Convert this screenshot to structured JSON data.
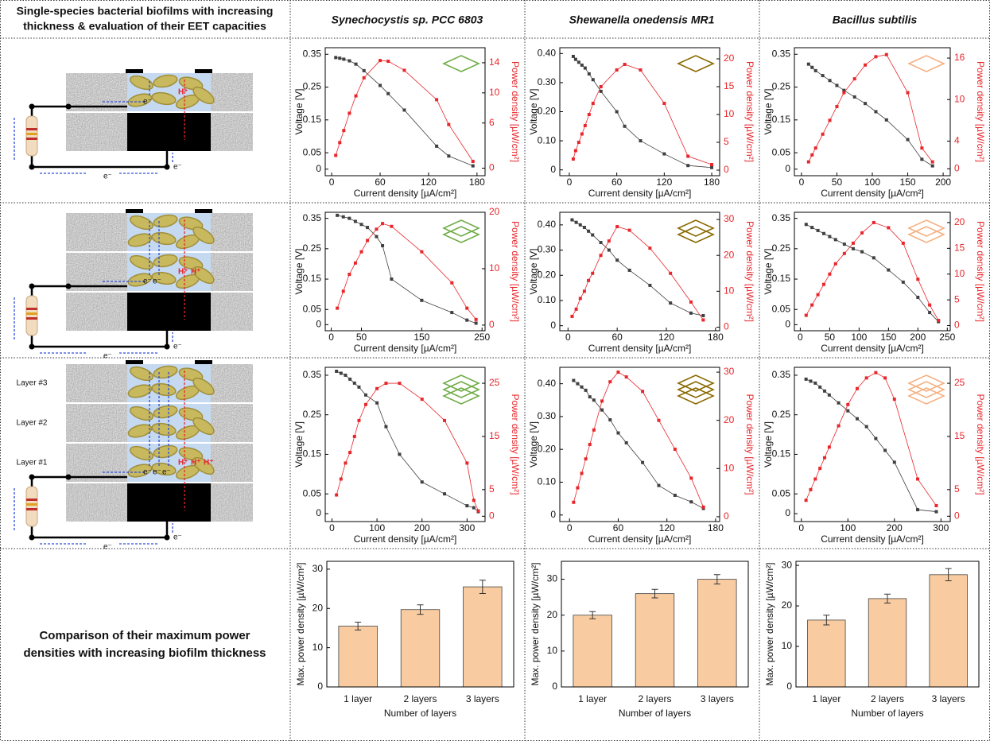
{
  "table": {
    "header_left": [
      "Single-species bacterial biofilms with increasing",
      "thickness & evaluation of their EET capacities"
    ],
    "columns": [
      "Synechocystis sp. PCC 6803",
      "Shewanella onedensis MR1",
      "Bacillus subtilis"
    ],
    "bottom_left": [
      "Comparison of their maximum power",
      "densities with increasing biofilm thickness"
    ]
  },
  "diagrams": {
    "electron": "e⁻",
    "proton": "H⁺",
    "layers": [
      "Layer #1",
      "Layer #2",
      "Layer #3"
    ]
  },
  "chart_data": [
    {
      "type": "line",
      "xlabel": "Current density [µA/cm²]",
      "ylabel": "Voltage [V]",
      "y2label": "Power density [µW/cm²]",
      "icon_color": "#70ad47",
      "xlim": [
        -8,
        190
      ],
      "xticks": [
        0,
        60,
        120,
        180
      ],
      "ylim": [
        -0.02,
        0.37
      ],
      "yticks": [
        0,
        0.05,
        0.15,
        0.25,
        0.35
      ],
      "y2lim": [
        -1,
        16
      ],
      "y2ticks": [
        0,
        6,
        10,
        14
      ],
      "x": [
        5,
        10,
        15,
        22,
        30,
        40,
        60,
        70,
        90,
        130,
        145,
        175
      ],
      "series": [
        {
          "color": "#404040",
          "values": [
            0.34,
            0.338,
            0.335,
            0.33,
            0.32,
            0.3,
            0.255,
            0.23,
            0.18,
            0.07,
            0.04,
            0.01
          ]
        },
        {
          "color": "#e8262b",
          "axis": "y2",
          "values": [
            1.7,
            3.4,
            5,
            7.3,
            9.6,
            12,
            14.3,
            14.2,
            13,
            9.1,
            5.8,
            0.9
          ]
        }
      ]
    },
    {
      "type": "line",
      "xlabel": "Current density [µA/cm²]",
      "ylabel": "Voltage [V]",
      "y2label": "Power density [µW/cm²]",
      "icon_color": "#8a6a00",
      "xlim": [
        -12,
        190
      ],
      "xticks": [
        0,
        60,
        120,
        180
      ],
      "ylim": [
        -0.02,
        0.42
      ],
      "yticks": [
        0,
        {
          "value": 0.1,
          "label": "0.10"
        },
        {
          "value": 0.2,
          "label": "0.20"
        },
        {
          "value": 0.3,
          "label": "0.30"
        },
        {
          "value": 0.4,
          "label": "0.40"
        }
      ],
      "y2lim": [
        -1,
        22
      ],
      "y2ticks": [
        0,
        5,
        10,
        15,
        20
      ],
      "x": [
        5,
        8,
        12,
        16,
        20,
        25,
        30,
        40,
        60,
        70,
        90,
        120,
        150,
        180
      ],
      "series": [
        {
          "color": "#404040",
          "values": [
            0.39,
            0.38,
            0.37,
            0.36,
            0.35,
            0.33,
            0.31,
            0.27,
            0.2,
            0.15,
            0.1,
            0.055,
            0.015,
            0.008
          ]
        },
        {
          "color": "#e8262b",
          "axis": "y2",
          "values": [
            2,
            3.5,
            5,
            6.5,
            8,
            10,
            12,
            15,
            18,
            19,
            18,
            12,
            2.5,
            1
          ]
        }
      ]
    },
    {
      "type": "line",
      "xlabel": "Current density [µA/cm²]",
      "ylabel": "Voltage [V]",
      "y2label": "Power density [µW/cm²]",
      "icon_color": "#f4b183",
      "xlim": [
        -10,
        210
      ],
      "xticks": [
        0,
        50,
        100,
        150,
        200
      ],
      "ylim": [
        -0.02,
        0.37
      ],
      "yticks": [
        0,
        0.05,
        0.15,
        0.25,
        0.35
      ],
      "y2lim": [
        -1,
        17.5
      ],
      "y2ticks": [
        0,
        4,
        10,
        16
      ],
      "x": [
        10,
        15,
        20,
        30,
        40,
        50,
        60,
        75,
        90,
        105,
        120,
        150,
        170,
        185
      ],
      "series": [
        {
          "color": "#404040",
          "values": [
            0.32,
            0.31,
            0.3,
            0.285,
            0.27,
            0.255,
            0.24,
            0.22,
            0.2,
            0.175,
            0.15,
            0.09,
            0.03,
            0.01
          ]
        },
        {
          "color": "#e8262b",
          "axis": "y2",
          "values": [
            1,
            2,
            3,
            5,
            7,
            9,
            11,
            13,
            15,
            16.2,
            16.5,
            11,
            3,
            1
          ]
        }
      ]
    },
    {
      "type": "line",
      "xlabel": "Current density [µA/cm²]",
      "ylabel": "Voltage [V]",
      "y2label": "Power density [µW/cm²]",
      "icon_color": "#70ad47",
      "xlim": [
        -10,
        255
      ],
      "xticks": [
        0,
        50,
        150,
        250
      ],
      "ylim": [
        -0.02,
        0.37
      ],
      "yticks": [
        0,
        0.05,
        0.15,
        0.25,
        0.35
      ],
      "y2lim": [
        -1,
        20
      ],
      "y2ticks": [
        0,
        10,
        20
      ],
      "x": [
        10,
        20,
        30,
        40,
        50,
        60,
        75,
        85,
        100,
        150,
        200,
        225,
        240
      ],
      "series": [
        {
          "color": "#404040",
          "values": [
            0.36,
            0.355,
            0.35,
            0.34,
            0.33,
            0.32,
            0.29,
            0.26,
            0.15,
            0.08,
            0.04,
            0.015,
            0.005
          ]
        },
        {
          "color": "#e8262b",
          "axis": "y2",
          "values": [
            3,
            6,
            9,
            11,
            13,
            15,
            17,
            18,
            17.5,
            13,
            7.5,
            3,
            1
          ]
        }
      ]
    },
    {
      "type": "line",
      "xlabel": "Current density [µA/cm²]",
      "ylabel": "Voltage [V]",
      "y2label": "Power density [µW/cm²]",
      "icon_color": "#8a6a00",
      "xlim": [
        -10,
        185
      ],
      "xticks": [
        0,
        60,
        120,
        180
      ],
      "ylim": [
        -0.02,
        0.45
      ],
      "yticks": [
        0,
        {
          "value": 0.1,
          "label": "0.10"
        },
        {
          "value": 0.2,
          "label": "0.20"
        },
        {
          "value": 0.3,
          "label": "0.30"
        },
        {
          "value": 0.4,
          "label": "0.40"
        }
      ],
      "y2lim": [
        -1,
        32
      ],
      "y2ticks": [
        0,
        10,
        20,
        30
      ],
      "x": [
        5,
        10,
        15,
        20,
        25,
        30,
        40,
        50,
        60,
        75,
        100,
        125,
        150,
        165
      ],
      "series": [
        {
          "color": "#404040",
          "values": [
            0.42,
            0.41,
            0.4,
            0.39,
            0.375,
            0.36,
            0.33,
            0.3,
            0.26,
            0.22,
            0.16,
            0.09,
            0.05,
            0.04
          ]
        },
        {
          "color": "#e8262b",
          "axis": "y2",
          "values": [
            3,
            5,
            8,
            10,
            13,
            15,
            20,
            24,
            28,
            27,
            22,
            15,
            7,
            2
          ]
        }
      ]
    },
    {
      "type": "line",
      "xlabel": "Current density [µA/cm²]",
      "ylabel": "Voltage [V]",
      "y2label": "Power density [µW/cm²]",
      "icon_color": "#f4b183",
      "xlim": [
        -10,
        255
      ],
      "xticks": [
        0,
        50,
        100,
        150,
        200,
        250
      ],
      "ylim": [
        -0.02,
        0.37
      ],
      "yticks": [
        0,
        0.05,
        0.15,
        0.25,
        0.35
      ],
      "y2lim": [
        -1,
        22
      ],
      "y2ticks": [
        0,
        5,
        10,
        15,
        20
      ],
      "x": [
        10,
        20,
        30,
        40,
        50,
        60,
        75,
        90,
        105,
        125,
        150,
        175,
        200,
        220,
        235
      ],
      "series": [
        {
          "color": "#404040",
          "values": [
            0.33,
            0.32,
            0.31,
            0.3,
            0.29,
            0.28,
            0.265,
            0.25,
            0.24,
            0.22,
            0.18,
            0.14,
            0.09,
            0.04,
            0.01
          ]
        },
        {
          "color": "#e8262b",
          "axis": "y2",
          "values": [
            2,
            4,
            6,
            8,
            10,
            12,
            14,
            16,
            18,
            20,
            19,
            16,
            9,
            4,
            1
          ]
        }
      ]
    },
    {
      "type": "line",
      "xlabel": "Current density [µA/cm²]",
      "ylabel": "Voltage [V]",
      "y2label": "Power density [µW/cm²]",
      "icon_color": "#70ad47",
      "xlim": [
        -15,
        340
      ],
      "xticks": [
        0,
        100,
        200,
        300
      ],
      "ylim": [
        -0.02,
        0.37
      ],
      "yticks": [
        0,
        0.05,
        0.15,
        0.25,
        0.35
      ],
      "y2lim": [
        -1,
        28
      ],
      "y2ticks": [
        0,
        5,
        15,
        25
      ],
      "x": [
        10,
        20,
        30,
        40,
        50,
        60,
        75,
        100,
        120,
        150,
        200,
        250,
        300,
        315,
        325
      ],
      "series": [
        {
          "color": "#404040",
          "values": [
            0.36,
            0.355,
            0.35,
            0.34,
            0.33,
            0.32,
            0.3,
            0.28,
            0.22,
            0.15,
            0.08,
            0.05,
            0.02,
            0.015,
            0.005
          ]
        },
        {
          "color": "#e8262b",
          "axis": "y2",
          "values": [
            4,
            7,
            10,
            12,
            15,
            18,
            21,
            24,
            25,
            25,
            22,
            18,
            10,
            3,
            1
          ]
        }
      ]
    },
    {
      "type": "line",
      "xlabel": "Current density [µA/cm²]",
      "ylabel": "Voltage [V]",
      "y2label": "Power density [µW/cm²]",
      "icon_color": "#8a6a00",
      "xlim": [
        -12,
        185
      ],
      "xticks": [
        0,
        60,
        120,
        180
      ],
      "ylim": [
        -0.02,
        0.45
      ],
      "yticks": [
        0,
        {
          "value": 0.1,
          "label": "0.10"
        },
        {
          "value": 0.2,
          "label": "0.20"
        },
        {
          "value": 0.3,
          "label": "0.30"
        },
        {
          "value": 0.4,
          "label": "0.40"
        }
      ],
      "y2lim": [
        -1,
        31
      ],
      "y2ticks": [
        0,
        10,
        20,
        30
      ],
      "x": [
        5,
        10,
        15,
        20,
        25,
        30,
        40,
        50,
        60,
        70,
        90,
        110,
        130,
        150,
        165
      ],
      "series": [
        {
          "color": "#404040",
          "values": [
            0.41,
            0.4,
            0.39,
            0.38,
            0.36,
            0.35,
            0.32,
            0.29,
            0.25,
            0.22,
            0.16,
            0.09,
            0.06,
            0.04,
            0.02
          ]
        },
        {
          "color": "#e8262b",
          "axis": "y2",
          "values": [
            3,
            6,
            9,
            12,
            15,
            18,
            24,
            28,
            30,
            29,
            26,
            20,
            14,
            8,
            2
          ]
        }
      ]
    },
    {
      "type": "line",
      "xlabel": "Current density [µA/cm²]",
      "ylabel": "Voltage [V]",
      "y2label": "Power density [µW/cm²]",
      "icon_color": "#f4b183",
      "xlim": [
        -15,
        320
      ],
      "xticks": [
        0,
        100,
        200,
        300
      ],
      "ylim": [
        -0.02,
        0.37
      ],
      "yticks": [
        0,
        0.05,
        0.15,
        0.25,
        0.35
      ],
      "y2lim": [
        -1,
        28
      ],
      "y2ticks": [
        0,
        5,
        15,
        25
      ],
      "x": [
        10,
        20,
        30,
        40,
        50,
        60,
        80,
        100,
        120,
        140,
        160,
        180,
        200,
        250,
        290
      ],
      "series": [
        {
          "color": "#404040",
          "values": [
            0.34,
            0.335,
            0.33,
            0.32,
            0.31,
            0.3,
            0.28,
            0.26,
            0.24,
            0.22,
            0.19,
            0.16,
            0.13,
            0.01,
            0.005
          ]
        },
        {
          "color": "#e8262b",
          "axis": "y2",
          "values": [
            3,
            5,
            7,
            9,
            11,
            13,
            17,
            21,
            24,
            26,
            27,
            26,
            22,
            7,
            2
          ]
        }
      ]
    },
    {
      "type": "bar",
      "xlabel": "Number of layers",
      "ylabel": "Max. power density [µW/cm²]",
      "color": "#f8cba0",
      "categories": [
        "1 layer",
        "2 layers",
        "3 layers"
      ],
      "values": [
        15.5,
        19.7,
        25.5
      ],
      "errors": [
        1,
        1.2,
        1.7
      ],
      "ylim": [
        0,
        32
      ],
      "yticks": [
        0,
        10,
        20,
        30
      ]
    },
    {
      "type": "bar",
      "xlabel": "Number of layers",
      "ylabel": "Max. power density [µW/cm²]",
      "color": "#f8cba0",
      "categories": [
        "1 layer",
        "2 layers",
        "3 layers"
      ],
      "values": [
        20,
        26,
        30
      ],
      "errors": [
        1,
        1.2,
        1.3
      ],
      "ylim": [
        0,
        35
      ],
      "yticks": [
        0,
        10,
        20,
        30
      ]
    },
    {
      "type": "bar",
      "xlabel": "Number of layers",
      "ylabel": "Max. power density [µW/cm²]",
      "color": "#f8cba0",
      "categories": [
        "1 layer",
        "2 layers",
        "3 layers"
      ],
      "values": [
        16.5,
        21.8,
        27.7
      ],
      "errors": [
        1.2,
        1.1,
        1.5
      ],
      "ylim": [
        0,
        31
      ],
      "yticks": [
        0,
        10,
        20,
        30
      ]
    }
  ]
}
